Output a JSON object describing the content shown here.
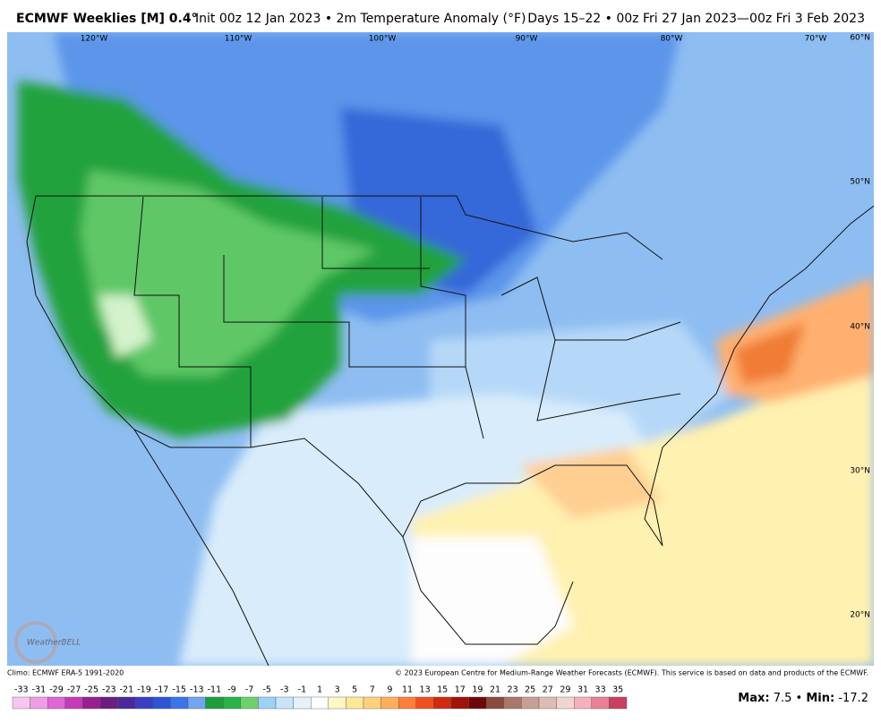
{
  "header": {
    "title": "ECMWF Weeklies [M] 0.4°",
    "subtitle": "Init 00z 12 Jan 2023 • 2m Temperature Anomaly (°F)",
    "period": "Days 15–22 • 00z Fri 27 Jan 2023—00z Fri 3 Feb 2023"
  },
  "map": {
    "longitude_labels": [
      "120°W",
      "110°W",
      "100°W",
      "90°W",
      "80°W",
      "70°W"
    ],
    "latitude_labels": [
      "60°N",
      "50°N",
      "40°N",
      "30°N",
      "20°N"
    ],
    "logo": "WeatherBELL"
  },
  "footer": {
    "climo": "Climo: ECMWF ERA-5 1991-2020",
    "copyright": "© 2023 European Centre for Medium-Range Weather Forecasts (ECMWF). This service is based on data and products of the ECMWF."
  },
  "colorbar": {
    "labels": [
      -33,
      -31,
      -29,
      -27,
      -25,
      -23,
      -21,
      -19,
      -17,
      -15,
      -13,
      -11,
      -9,
      -7,
      -5,
      -3,
      -1,
      1,
      3,
      5,
      7,
      9,
      11,
      13,
      15,
      17,
      19,
      21,
      23,
      25,
      27,
      29,
      31,
      33,
      35
    ],
    "colors": [
      "#f7c6f0",
      "#f09be6",
      "#e066d6",
      "#c43bb8",
      "#9a1f8e",
      "#6a1e7e",
      "#4a2a9a",
      "#3a3ec2",
      "#2d55d8",
      "#3b74e8",
      "#6ea6f2",
      "#1e9e3a",
      "#2bb24a",
      "#6ed06a",
      "#9fd0f7",
      "#c6e4fa",
      "#e4f2fc",
      "#ffffff",
      "#fff6c2",
      "#ffe79a",
      "#ffd17a",
      "#ffae5a",
      "#ff7f3a",
      "#f0501e",
      "#d02a12",
      "#a0120a",
      "#6e0808",
      "#8a4a3e",
      "#a8786c",
      "#c6a094",
      "#dcbcb4",
      "#f0d4d0",
      "#f6b0bc",
      "#e88096",
      "#c84060"
    ]
  },
  "stats": {
    "max_label": "Max:",
    "max": 7.5,
    "separator": "•",
    "min_label": "Min:",
    "min": -17.2
  }
}
